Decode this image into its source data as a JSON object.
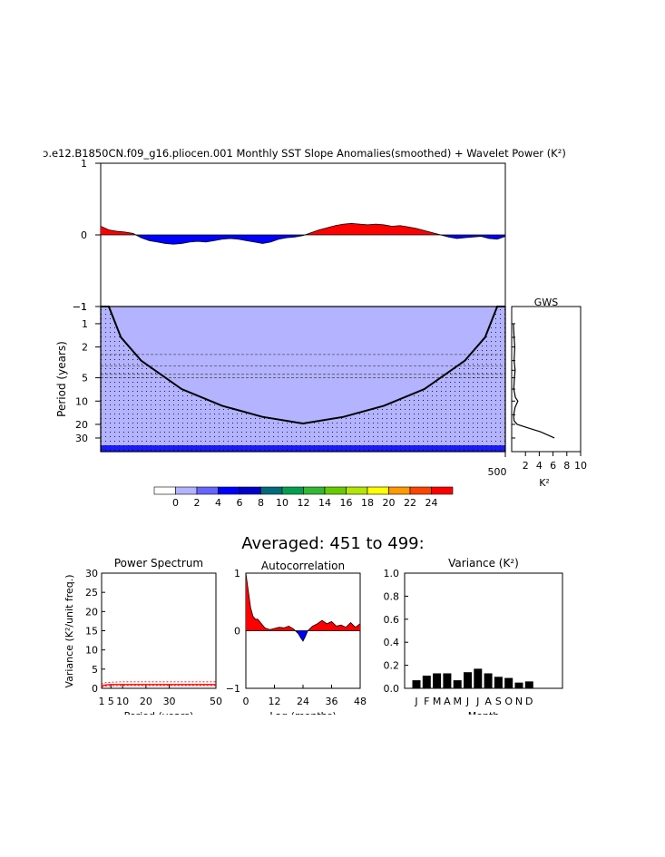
{
  "figure": {
    "title": "ɔ.e12.B1850CN.f09_g16.pliocen.001 Monthly SST Slope Anomalies(smoothed) + Wavelet Power (K²)",
    "avg_title": "Averaged: 451 to 499:"
  },
  "chart_data": [
    {
      "id": "timeseries",
      "type": "area",
      "title": "ɔ.e12.B1850CN.f09_g16.pliocen.001 Monthly SST Slope Anomalies(smoothed) + Wavelet Power (K²)",
      "ylim": [
        -1,
        1
      ],
      "yticks": [
        "1",
        "0",
        "−1"
      ],
      "xlim": [
        0,
        500
      ],
      "x": [
        0,
        10,
        20,
        30,
        40,
        50,
        60,
        70,
        80,
        90,
        100,
        110,
        120,
        130,
        140,
        150,
        160,
        170,
        180,
        190,
        200,
        210,
        220,
        230,
        240,
        250,
        260,
        270,
        280,
        290,
        300,
        310,
        320,
        330,
        340,
        350,
        360,
        370,
        380,
        390,
        400,
        410,
        420,
        430,
        440,
        450,
        460,
        470,
        480,
        490,
        500
      ],
      "values": [
        0.12,
        0.07,
        0.05,
        0.04,
        0.02,
        -0.04,
        -0.08,
        -0.1,
        -0.12,
        -0.13,
        -0.12,
        -0.1,
        -0.09,
        -0.1,
        -0.08,
        -0.06,
        -0.05,
        -0.06,
        -0.08,
        -0.1,
        -0.12,
        -0.1,
        -0.06,
        -0.04,
        -0.03,
        -0.01,
        0.03,
        0.07,
        0.1,
        0.13,
        0.15,
        0.16,
        0.15,
        0.14,
        0.15,
        0.14,
        0.12,
        0.13,
        0.11,
        0.09,
        0.06,
        0.03,
        0.0,
        -0.03,
        -0.05,
        -0.04,
        -0.03,
        -0.02,
        -0.05,
        -0.06,
        -0.02
      ],
      "positive_color": "#ff0000",
      "negative_color": "#0000ff"
    },
    {
      "id": "wavelet",
      "type": "heatmap",
      "ylabel": "Period (years)",
      "yticks": [
        "1",
        "2",
        "5",
        "10",
        "20",
        "30"
      ],
      "xticks": [
        "500"
      ],
      "xlim": [
        0,
        500
      ],
      "fill_color": "#b3b3ff",
      "band_color": "#1a1aff",
      "coi_x": [
        0,
        10,
        25,
        50,
        100,
        150,
        200,
        250,
        300,
        350,
        400,
        450,
        475,
        490,
        500
      ],
      "coi_period": [
        0.6,
        0.6,
        1.5,
        3,
        7,
        11.5,
        16,
        19.5,
        16,
        11.5,
        7,
        3,
        1.5,
        0.6,
        0.6
      ],
      "dashed_periods": [
        2.5,
        3.5,
        4.5,
        5
      ]
    },
    {
      "id": "gws",
      "type": "line",
      "title": "GWS",
      "xlabel": "K²",
      "xticks": [
        "2",
        "4",
        "6",
        "8",
        "10"
      ],
      "xlim": [
        0,
        10
      ],
      "period": [
        1,
        1.5,
        2,
        3,
        4,
        5,
        7,
        9,
        10,
        12,
        14,
        16,
        18,
        20,
        22,
        25,
        30
      ],
      "values": [
        0.25,
        0.35,
        0.45,
        0.35,
        0.5,
        0.4,
        0.3,
        0.55,
        0.9,
        0.5,
        0.35,
        0.3,
        0.35,
        0.8,
        2.2,
        4.2,
        6.2
      ]
    },
    {
      "id": "power_spectrum",
      "type": "line",
      "title": "Power Spectrum",
      "xlabel": "Period (years)",
      "ylabel": "Variance (K²/unit freq.)",
      "ylim": [
        0,
        30
      ],
      "yticks": [
        "0",
        "5",
        "10",
        "15",
        "20",
        "25",
        "30"
      ],
      "xlim": [
        1,
        50
      ],
      "xticks": [
        "1",
        "5",
        "10",
        "20",
        "30",
        "50"
      ],
      "period": [
        1,
        2,
        3,
        5,
        10,
        20,
        30,
        50
      ],
      "values": [
        0.5,
        0.8,
        0.9,
        1.0,
        1.0,
        1.0,
        1.0,
        1.0
      ],
      "upper": [
        1.0,
        1.4,
        1.5,
        1.6,
        1.7,
        1.7,
        1.7,
        1.7
      ],
      "lower": [
        0.3,
        0.5,
        0.6,
        0.65,
        0.7,
        0.7,
        0.7,
        0.7
      ]
    },
    {
      "id": "autocorrelation",
      "type": "area",
      "title": "Autocorrelation",
      "xlabel": "Lag (months)",
      "ylim": [
        -1,
        1
      ],
      "yticks": [
        "1",
        "0",
        "−1"
      ],
      "xlim": [
        0,
        48
      ],
      "xticks": [
        "0",
        "12",
        "24",
        "36",
        "48"
      ],
      "lag": [
        0,
        1,
        2,
        3,
        4,
        5,
        6,
        8,
        10,
        12,
        14,
        16,
        18,
        20,
        22,
        23,
        24,
        25,
        26,
        28,
        30,
        32,
        34,
        36,
        38,
        40,
        42,
        44,
        46,
        48
      ],
      "values": [
        1.0,
        0.7,
        0.4,
        0.25,
        0.2,
        0.2,
        0.15,
        0.05,
        0.02,
        0.04,
        0.06,
        0.05,
        0.08,
        0.03,
        -0.05,
        -0.12,
        -0.18,
        -0.1,
        0.0,
        0.08,
        0.12,
        0.18,
        0.12,
        0.16,
        0.08,
        0.1,
        0.06,
        0.14,
        0.06,
        0.12
      ]
    },
    {
      "id": "monthly_variance",
      "type": "bar",
      "title": "Variance (K²)",
      "xlabel": "Month",
      "ylim": [
        0,
        1
      ],
      "yticks": [
        "0.0",
        "0.2",
        "0.4",
        "0.6",
        "0.8",
        "1.0"
      ],
      "categories": [
        "J",
        "F",
        "M",
        "A",
        "M",
        "J",
        "J",
        "A",
        "S",
        "O",
        "N",
        "D"
      ],
      "values": [
        0.07,
        0.11,
        0.13,
        0.13,
        0.07,
        0.14,
        0.17,
        0.13,
        0.1,
        0.09,
        0.05,
        0.06
      ],
      "bar_color": "#000000"
    },
    {
      "id": "colorbar",
      "type": "table",
      "labels": [
        "0",
        "2",
        "4",
        "6",
        "8",
        "10",
        "12",
        "14",
        "16",
        "18",
        "20",
        "22",
        "24"
      ],
      "colors": [
        "#ffffff",
        "#b3b3ff",
        "#6666ff",
        "#0000ff",
        "#0000cc",
        "#006b7a",
        "#00a050",
        "#33b833",
        "#66cc00",
        "#b3e600",
        "#ffff00",
        "#ff9900",
        "#ff4400",
        "#ff0000"
      ]
    }
  ]
}
